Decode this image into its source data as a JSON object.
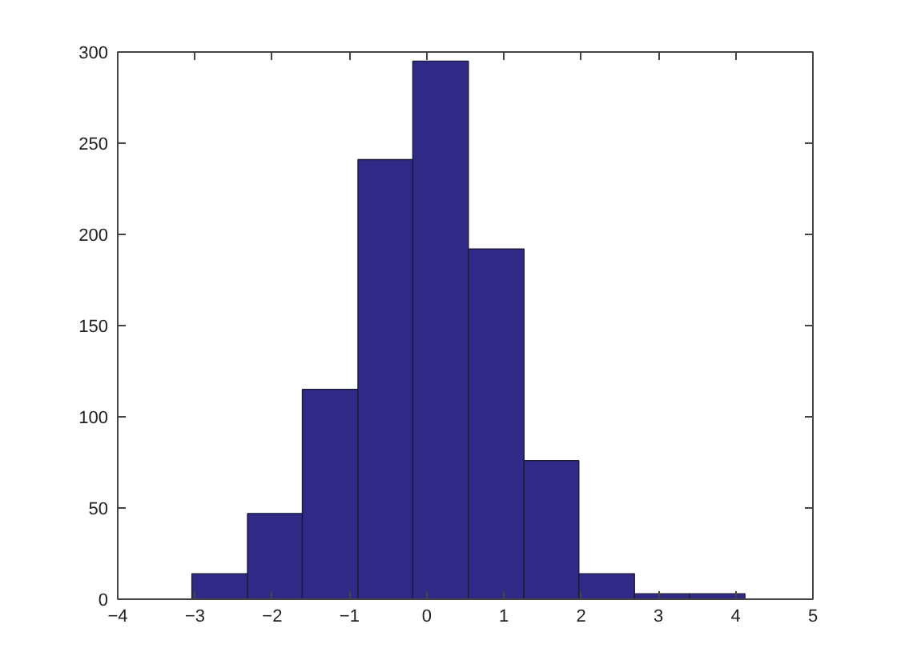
{
  "chart_data": {
    "type": "histogram",
    "bins": [
      -3.04,
      -2.32,
      -1.61,
      -0.89,
      -0.18,
      0.54,
      1.26,
      1.97,
      2.69,
      3.4,
      4.12
    ],
    "values": [
      14,
      47,
      115,
      241,
      295,
      192,
      76,
      14,
      3,
      3
    ],
    "color": "#302a86",
    "xlim": [
      -4,
      5
    ],
    "xticks": [
      -4,
      -3,
      -2,
      -1,
      0,
      1,
      2,
      3,
      4,
      5
    ],
    "ylim": [
      0,
      300
    ],
    "yticks": [
      0,
      50,
      100,
      150,
      200,
      250,
      300
    ],
    "grid": false
  }
}
